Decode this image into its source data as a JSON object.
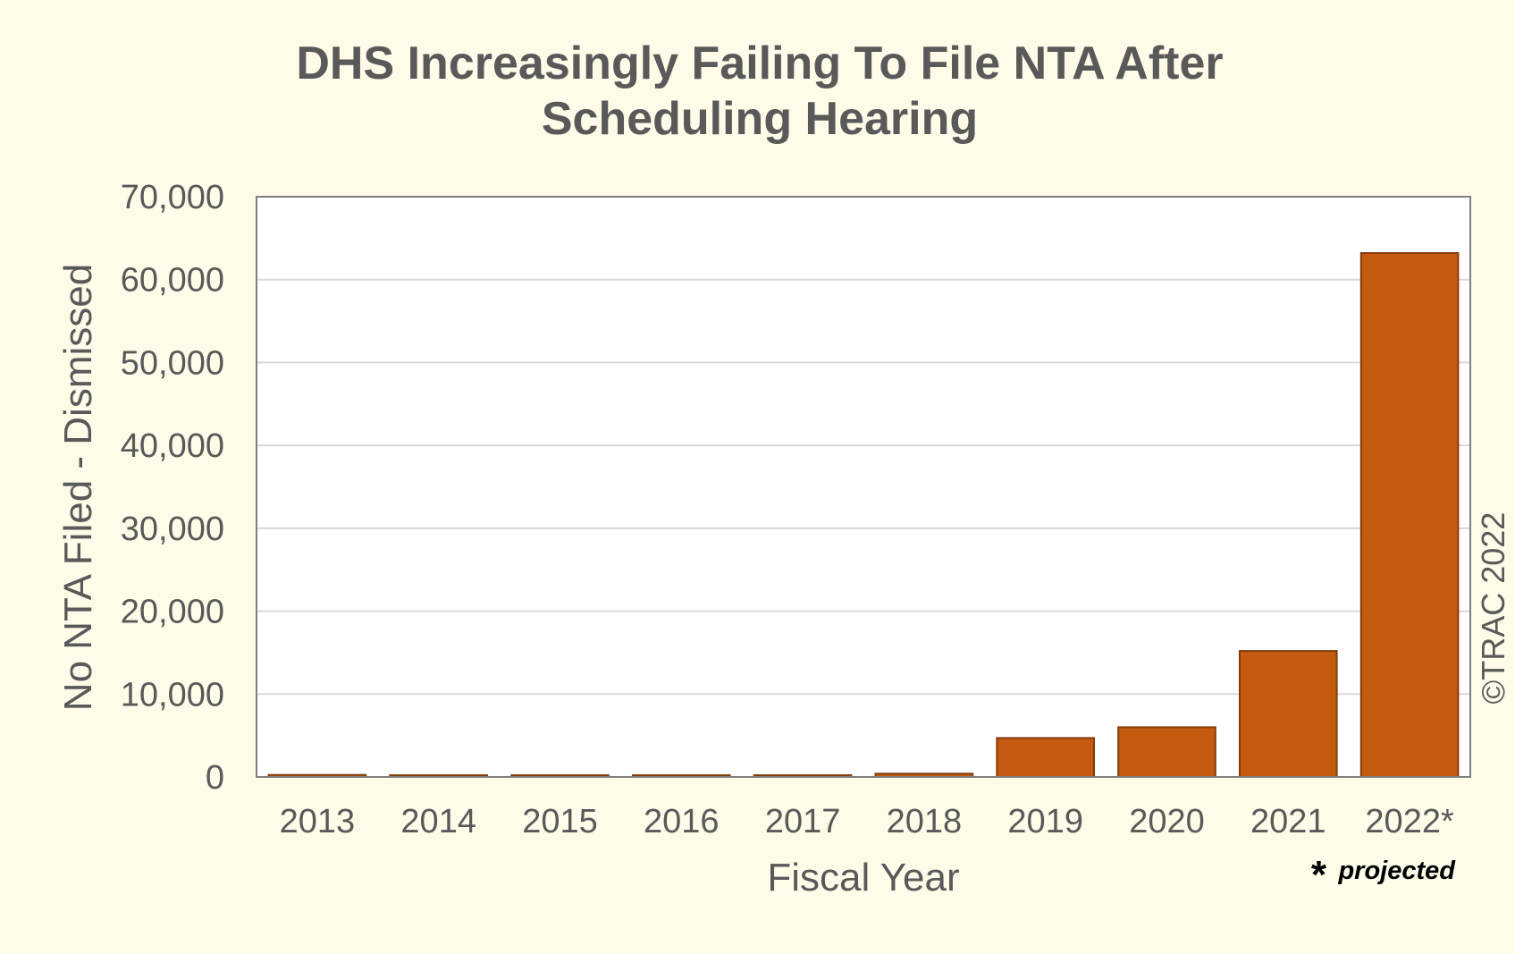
{
  "chart_data": {
    "type": "bar",
    "title_lines": [
      "DHS Increasingly Failing To File NTA After",
      "Scheduling Hearing"
    ],
    "xlabel": "Fiscal Year",
    "ylabel": "No NTA Filed - Dismissed",
    "categories": [
      "2013",
      "2014",
      "2015",
      "2016",
      "2017",
      "2018",
      "2019",
      "2020",
      "2021",
      "2022*"
    ],
    "values": [
      250,
      180,
      100,
      110,
      90,
      400,
      4700,
      6000,
      15200,
      63200
    ],
    "ylim": [
      0,
      70000
    ],
    "yticks": [
      0,
      10000,
      20000,
      30000,
      40000,
      50000,
      60000,
      70000
    ],
    "ytick_labels": [
      "0",
      "10,000",
      "20,000",
      "30,000",
      "40,000",
      "50,000",
      "60,000",
      "70,000"
    ],
    "grid": "horizontal",
    "bar_color": "#c55a11",
    "bar_edge_color": "#843c0c",
    "footnote_marker": "*",
    "footnote_text": "projected",
    "copyright": "©TRAC 2022"
  }
}
